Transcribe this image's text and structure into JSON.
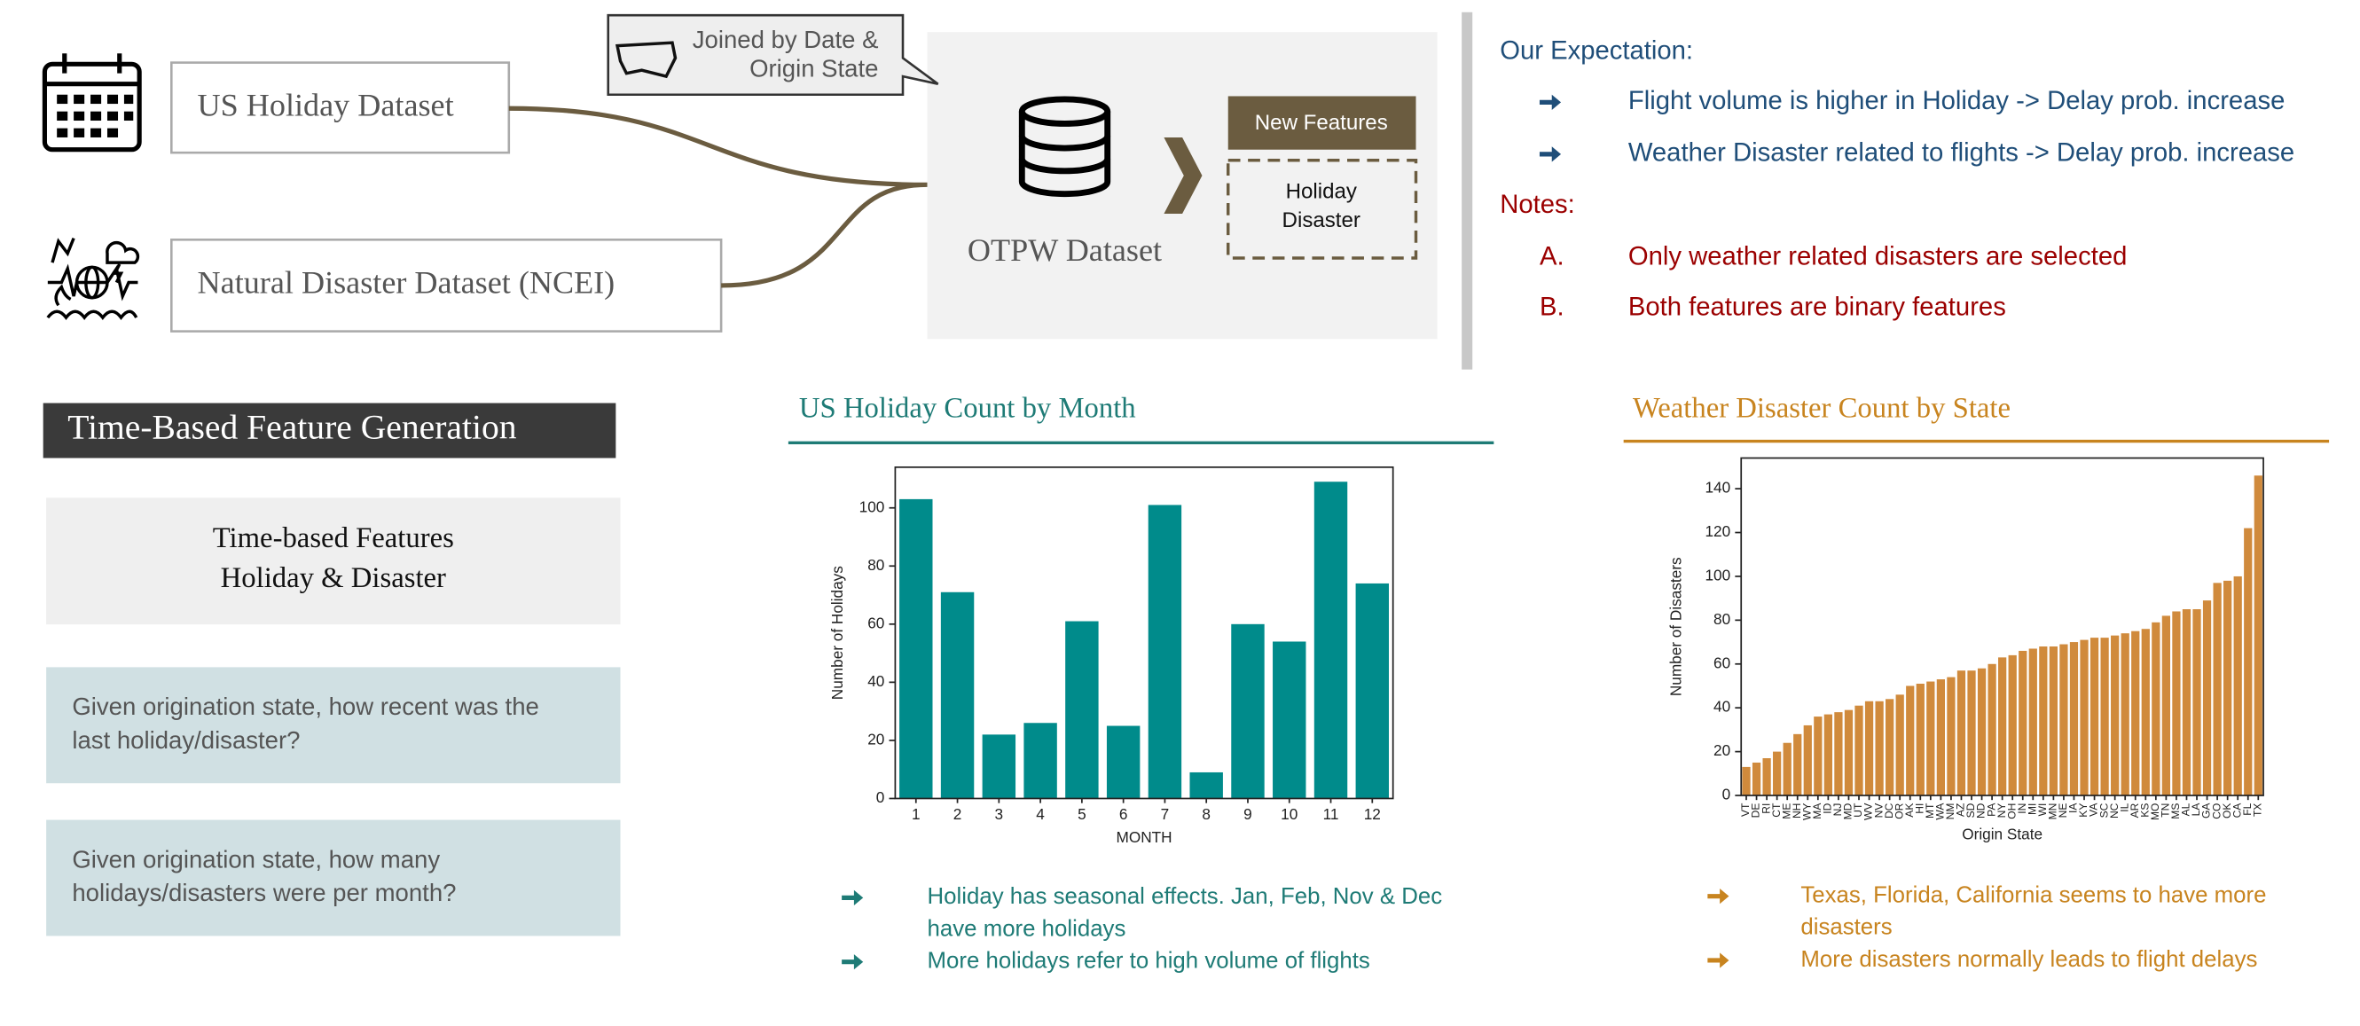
{
  "sources": [
    "US Holiday Dataset",
    "Natural Disaster Dataset (NCEI)"
  ],
  "join_note": [
    "Joined by Date &",
    "Origin State"
  ],
  "target": "OTPW Dataset",
  "new_features": {
    "title": "New Features",
    "items": [
      "Holiday",
      "Disaster"
    ]
  },
  "expectation": {
    "title": "Our Expectation:",
    "items": [
      "Flight volume is higher in Holiday -> Delay prob. increase",
      "Weather Disaster related to flights -> Delay prob. increase"
    ]
  },
  "notes": {
    "title": "Notes:",
    "items": [
      {
        "marker": "A.",
        "text": "Only weather related disasters are selected"
      },
      {
        "marker": "B.",
        "text": "Both features are binary features"
      }
    ]
  },
  "feature_section": {
    "title": "Time-Based Feature Generation",
    "header": [
      "Time-based Features",
      "Holiday & Disaster"
    ],
    "questions": [
      [
        "Given origination state, how recent was the",
        "last holiday/disaster?"
      ],
      [
        "Given origination state, how many",
        "holidays/disasters were per month?"
      ]
    ]
  },
  "chart_data": [
    {
      "type": "bar",
      "title": "US Holiday Count by Month",
      "xlabel": "MONTH",
      "ylabel": "Number of Holidays",
      "categories": [
        "1",
        "2",
        "3",
        "4",
        "5",
        "6",
        "7",
        "8",
        "9",
        "10",
        "11",
        "12"
      ],
      "values": [
        103,
        71,
        22,
        26,
        61,
        25,
        101,
        9,
        60,
        54,
        109,
        74
      ],
      "color": "#008b8b",
      "ylim": [
        0,
        114
      ],
      "yticks": [
        0,
        20,
        40,
        60,
        80,
        100
      ],
      "notes": [
        [
          "Holiday has seasonal effects. Jan, Feb, Nov & Dec",
          "have more holidays"
        ],
        [
          "More holidays refer to high volume of flights"
        ]
      ]
    },
    {
      "type": "bar",
      "title": "Weather Disaster Count by State",
      "xlabel": "Origin State",
      "ylabel": "Number of Disasters",
      "categories": [
        "VT",
        "DE",
        "RI",
        "CT",
        "ME",
        "NH",
        "WY",
        "MA",
        "ID",
        "NJ",
        "MD",
        "UT",
        "WV",
        "NV",
        "DC",
        "OR",
        "AK",
        "HI",
        "MT",
        "WA",
        "NM",
        "AZ",
        "SD",
        "ND",
        "PA",
        "NY",
        "OH",
        "IN",
        "MI",
        "WI",
        "MN",
        "NE",
        "IA",
        "KY",
        "VA",
        "SC",
        "NC",
        "IL",
        "AR",
        "KS",
        "MO",
        "TN",
        "MS",
        "AL",
        "LA",
        "GA",
        "CO",
        "OK",
        "CA",
        "FL",
        "TX"
      ],
      "values": [
        13,
        15,
        17,
        20,
        24,
        28,
        32,
        36,
        37,
        38,
        39,
        41,
        43,
        43,
        44,
        46,
        50,
        51,
        52,
        53,
        54,
        57,
        57,
        58,
        60,
        63,
        64,
        66,
        67,
        68,
        68,
        69,
        70,
        71,
        72,
        72,
        73,
        74,
        75,
        76,
        79,
        82,
        84,
        85,
        85,
        89,
        97,
        98,
        100,
        122,
        146
      ],
      "color": "#d08a3c",
      "ylim": [
        0,
        154
      ],
      "yticks": [
        0,
        20,
        40,
        60,
        80,
        100,
        120,
        140
      ],
      "notes": [
        [
          "Texas, Florida, California seems to have more",
          "disasters"
        ],
        [
          "More disasters normally leads to flight delays"
        ]
      ]
    }
  ]
}
